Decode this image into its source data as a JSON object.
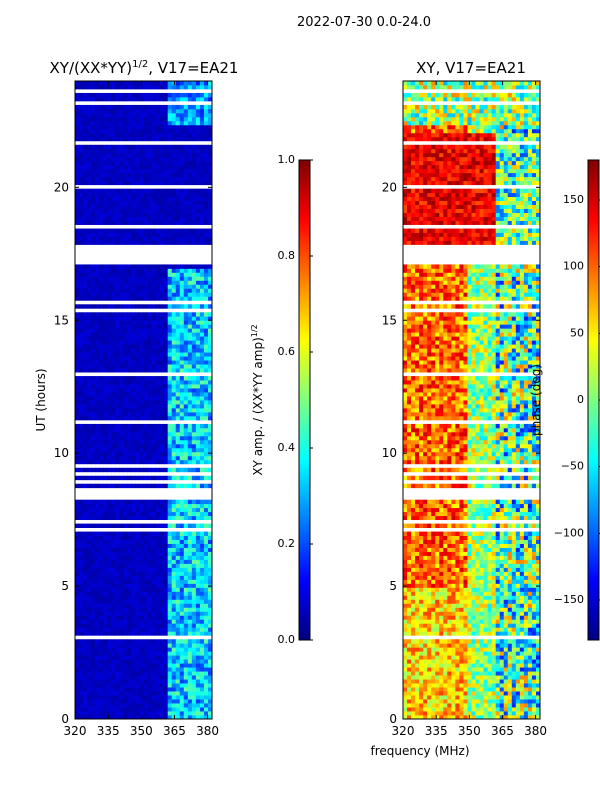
{
  "figure": {
    "suptitle": "2022-07-30 0.0-24.0",
    "xlabel": "frequency (MHz)",
    "ylabel": "UT (hours)"
  },
  "colors": {
    "jet": [
      "#00007f",
      "#0000ff",
      "#007fff",
      "#00ffff",
      "#7fff7f",
      "#ffff00",
      "#ff7f00",
      "#ff0000",
      "#7f0000"
    ],
    "nodata": "#ffffff",
    "frame": "#000000"
  },
  "chart_data": [
    {
      "type": "heatmap",
      "title_main": "XY/(XX*YY)",
      "title_sup": "1/2",
      "title_tail": ", V17=EA21",
      "x_range_mhz": [
        320,
        382
      ],
      "y_range_hours": [
        0,
        24
      ],
      "x_ticks": [
        320,
        335,
        350,
        365,
        380
      ],
      "x_tick_labels": [
        "320",
        "335",
        "350",
        "365",
        "380"
      ],
      "y_ticks": [
        0,
        5,
        10,
        15,
        20
      ],
      "y_tick_labels": [
        "0",
        "5",
        "10",
        "15",
        "20"
      ],
      "colormap": "jet",
      "summary": "Amplitude near 0.05 across most frequencies; elevated 0.3-0.5 between ~362 and ~382 MHz; numerous flagged time rows"
    },
    {
      "type": "heatmap",
      "title": "XY, V17=EA21",
      "x_range_mhz": [
        320,
        382
      ],
      "y_range_hours": [
        0,
        24
      ],
      "x_ticks": [
        320,
        335,
        350,
        365,
        380
      ],
      "x_tick_labels": [
        "320",
        "335",
        "350",
        "365",
        "380"
      ],
      "y_ticks": [
        0,
        5,
        10,
        15,
        20
      ],
      "y_tick_labels": [
        "0",
        "5",
        "10",
        "15",
        "20"
      ],
      "colormap": "jet",
      "summary": "Phase with warm values (50-150 deg) in 320-350 MHz, noisy, and cold bands above 360 MHz; numerous flagged time rows"
    }
  ],
  "colorbars": [
    {
      "label_main": "XY amp. / (XX*YY amp)",
      "label_sup": "1/2",
      "range": [
        0.0,
        1.0
      ],
      "ticks": [
        0.0,
        0.2,
        0.4,
        0.6,
        0.8,
        1.0
      ],
      "tick_labels": [
        "0.0",
        "0.2",
        "0.4",
        "0.6",
        "0.8",
        "1.0"
      ]
    },
    {
      "label": "phase (deg)",
      "range": [
        -180,
        180
      ],
      "ticks": [
        -150,
        -100,
        -50,
        0,
        50,
        100,
        150
      ],
      "tick_labels": [
        "−150",
        "−100",
        "−50",
        "0",
        "50",
        "100",
        "150"
      ]
    }
  ]
}
